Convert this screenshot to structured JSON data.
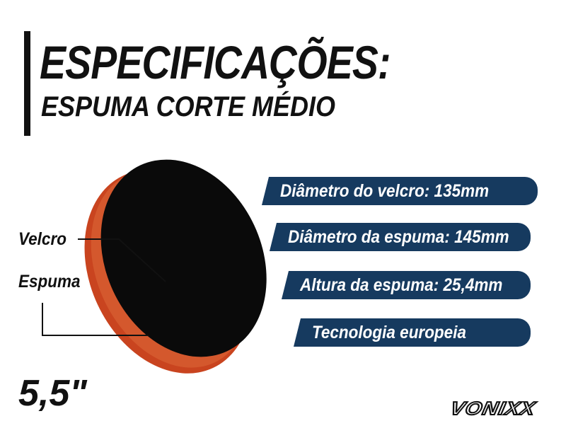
{
  "header": {
    "title": "ESPECIFICAÇÕES:",
    "subtitle": "ESPUMA CORTE MÉDIO"
  },
  "labels": {
    "velcro": "Velcro",
    "espuma": "Espuma"
  },
  "specs": [
    "Diâmetro do velcro: 135mm",
    "Diâmetro da espuma: 145mm",
    "Altura da espuma: 25,4mm",
    "Tecnologia europeia"
  ],
  "size": "5,5\"",
  "brand": "VONIXX",
  "colors": {
    "spec_bar": "#163a5f",
    "foam": "#c9441f",
    "velcro": "#0a0a0a",
    "text": "#111111"
  }
}
